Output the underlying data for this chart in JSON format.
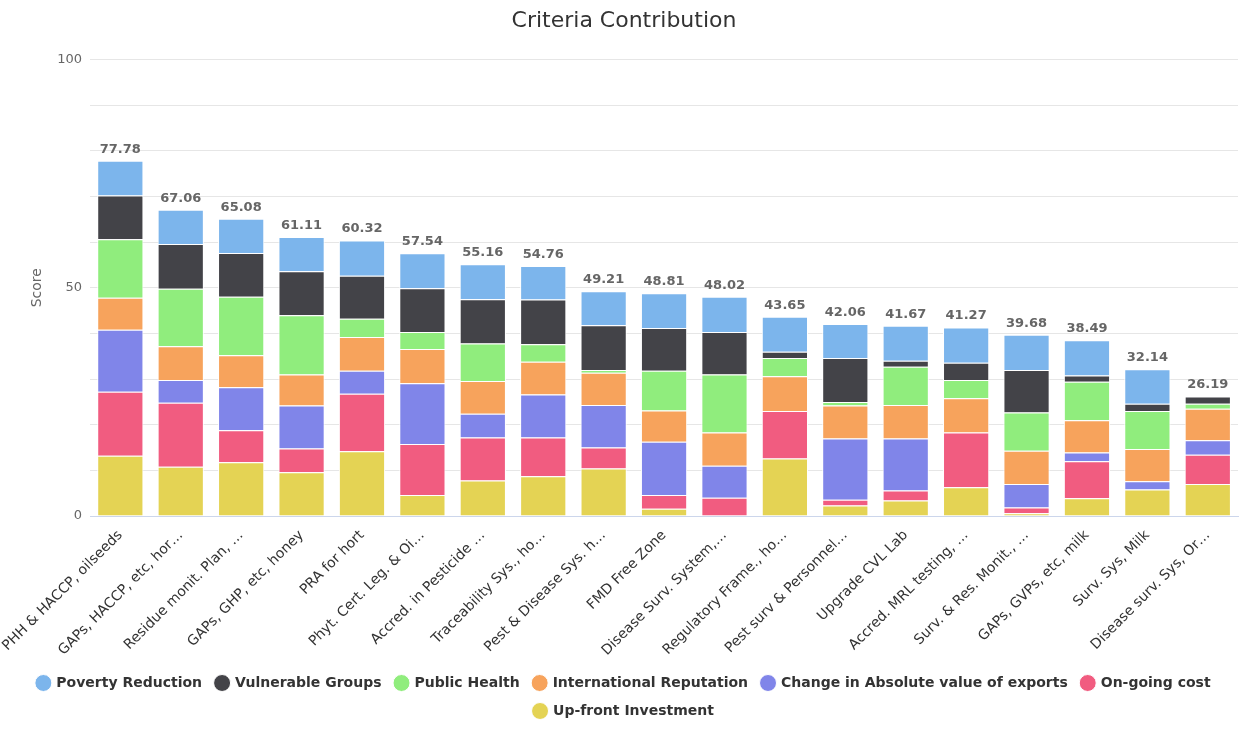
{
  "chart_data": {
    "type": "bar",
    "title": "Criteria Contribution",
    "ylabel": "Score",
    "stacked": true,
    "grid": "y",
    "legend": "bottom",
    "categories": [
      "PHH & HACCP, oilseeds",
      "GAPs, HACCP, etc, hor…",
      "Residue monit. Plan, …",
      "GAPs, GHP, etc, honey",
      "PRA for hort",
      "Phyt. Cert. Leg. & Oi…",
      "Accred. in Pesticide …",
      "Traceability Sys., ho…",
      "Pest & Disease Sys. h…",
      "FMD Free Zone",
      "Disease Surv. System,…",
      "Regulatory Frame., ho…",
      "Pest surv & Personnel…",
      "Upgrade CVL Lab",
      "Accred. MRL testing, …",
      "Surv. & Res. Monit., …",
      "GAPs, GVPs, etc, milk",
      "Surv. Sys, Milk",
      "Disease surv. Sys, Or…"
    ],
    "ylim": [
      0,
      100
    ],
    "yticks": [
      0,
      {
        "value": 10,
        "label": null
      },
      {
        "value": 20,
        "label": null
      },
      {
        "value": 30,
        "label": null
      },
      {
        "value": 40,
        "label": null
      },
      50,
      {
        "value": 60,
        "label": null
      },
      {
        "value": 70,
        "label": null
      },
      {
        "value": 80,
        "label": null
      },
      {
        "value": 90,
        "label": null
      },
      100
    ],
    "series": [
      {
        "name": "Up-front Investment",
        "color": "#e4d354",
        "values": [
          13.2,
          10.8,
          11.8,
          9.6,
          14.2,
          4.6,
          7.8,
          8.7,
          10.4,
          1.6,
          0,
          12.6,
          2.3,
          3.4,
          6.3,
          0.6,
          3.9,
          5.8,
          7.0
        ]
      },
      {
        "name": "On-going cost",
        "color": "#f15c80",
        "values": [
          14.0,
          14.0,
          7.0,
          5.2,
          12.6,
          11.2,
          9.4,
          8.5,
          4.6,
          3.0,
          4.0,
          10.4,
          1.3,
          2.2,
          12.0,
          1.3,
          8.1,
          0,
          6.4
        ]
      },
      {
        "name": "Change in Absolute value of exports",
        "color": "#8085e9",
        "values": [
          13.6,
          5.0,
          9.4,
          9.4,
          5.0,
          13.3,
          5.2,
          9.4,
          9.3,
          11.7,
          7.0,
          0,
          13.4,
          11.4,
          0,
          5.1,
          1.9,
          1.8,
          3.2
        ]
      },
      {
        "name": "International Reputation",
        "color": "#f7a35c",
        "values": [
          7.0,
          7.4,
          7.0,
          6.8,
          7.4,
          7.5,
          7.2,
          7.2,
          7.1,
          6.8,
          7.3,
          7.6,
          7.2,
          7.3,
          7.5,
          7.3,
          7.1,
          7.1,
          6.9
        ]
      },
      {
        "name": "Public Health",
        "color": "#90ed7d",
        "values": [
          12.8,
          12.6,
          12.8,
          13.0,
          4.0,
          3.7,
          8.2,
          3.8,
          0.6,
          8.7,
          12.7,
          4.0,
          0.8,
          8.4,
          4.0,
          8.4,
          8.4,
          8.3,
          1.1
        ]
      },
      {
        "name": "Vulnerable Groups",
        "color": "#434348",
        "values": [
          9.6,
          9.8,
          9.6,
          9.6,
          9.4,
          9.6,
          9.7,
          9.8,
          9.8,
          9.4,
          9.3,
          1.4,
          9.6,
          1.3,
          3.8,
          9.3,
          1.4,
          1.6,
          1.59
        ]
      },
      {
        "name": "Poverty Reduction",
        "color": "#7cb5ec",
        "values": [
          7.58,
          7.46,
          7.48,
          7.51,
          7.72,
          7.64,
          7.66,
          7.36,
          7.41,
          7.61,
          7.72,
          7.65,
          7.46,
          7.67,
          7.67,
          7.68,
          7.69,
          7.54,
          0
        ]
      }
    ],
    "totals": [
      "77.78",
      "67.06",
      "65.08",
      "61.11",
      "60.32",
      "57.54",
      "55.16",
      "54.76",
      "49.21",
      "48.81",
      "48.02",
      "43.65",
      "42.06",
      "41.67",
      "41.27",
      "39.68",
      "38.49",
      "32.14",
      "26.19"
    ]
  }
}
